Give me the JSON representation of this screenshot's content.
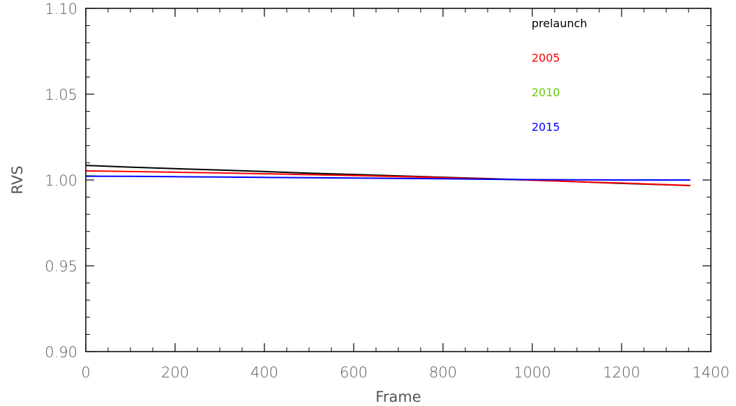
{
  "chart_data": {
    "type": "line",
    "title": "",
    "xlabel": "Frame",
    "ylabel": "RVS",
    "xlim": [
      0,
      1400
    ],
    "ylim": [
      0.9,
      1.1
    ],
    "x_ticks": [
      0,
      200,
      400,
      600,
      800,
      1000,
      1200,
      1400
    ],
    "x_tick_labels": [
      "0",
      "200",
      "400",
      "600",
      "800",
      "1000",
      "1200",
      "1400"
    ],
    "y_ticks": [
      0.9,
      0.95,
      1.0,
      1.05,
      1.1
    ],
    "y_tick_labels": [
      "0.90",
      "0.95",
      "1.00",
      "1.05",
      "1.10"
    ],
    "grid": false,
    "legend": "top-right",
    "series": [
      {
        "name": "prelaunch",
        "color": "#000000",
        "x": [
          0,
          100,
          200,
          300,
          400,
          500,
          600,
          700,
          800,
          900,
          1000,
          1100,
          1200,
          1300,
          1354
        ],
        "y": [
          1.0085,
          1.0075,
          1.0066,
          1.0058,
          1.0049,
          1.004,
          1.0032,
          1.0024,
          1.0016,
          1.0008,
          0.9999,
          0.999,
          0.998,
          0.9972,
          0.9967
        ]
      },
      {
        "name": "2005",
        "color": "#ff0000",
        "x": [
          0,
          100,
          200,
          300,
          400,
          500,
          600,
          700,
          800,
          900,
          1000,
          1100,
          1200,
          1300,
          1354
        ],
        "y": [
          1.0053,
          1.0049,
          1.0045,
          1.0041,
          1.0036,
          1.0031,
          1.0026,
          1.002,
          1.0013,
          1.0006,
          0.9999,
          0.999,
          0.9982,
          0.9973,
          0.9968
        ]
      },
      {
        "name": "2010",
        "color": "#66cc00",
        "x": [
          0,
          30
        ],
        "y": [
          1.0025,
          1.0022
        ]
      },
      {
        "name": "2015",
        "color": "#0000ff",
        "x": [
          0,
          100,
          200,
          300,
          400,
          500,
          600,
          700,
          800,
          900,
          1000,
          1100,
          1200,
          1300,
          1354
        ],
        "y": [
          1.0022,
          1.0021,
          1.0019,
          1.0017,
          1.0015,
          1.0013,
          1.0011,
          1.0009,
          1.0007,
          1.0004,
          1.0002,
          1.0001,
          1.0,
          1.0,
          1.0
        ]
      }
    ]
  }
}
